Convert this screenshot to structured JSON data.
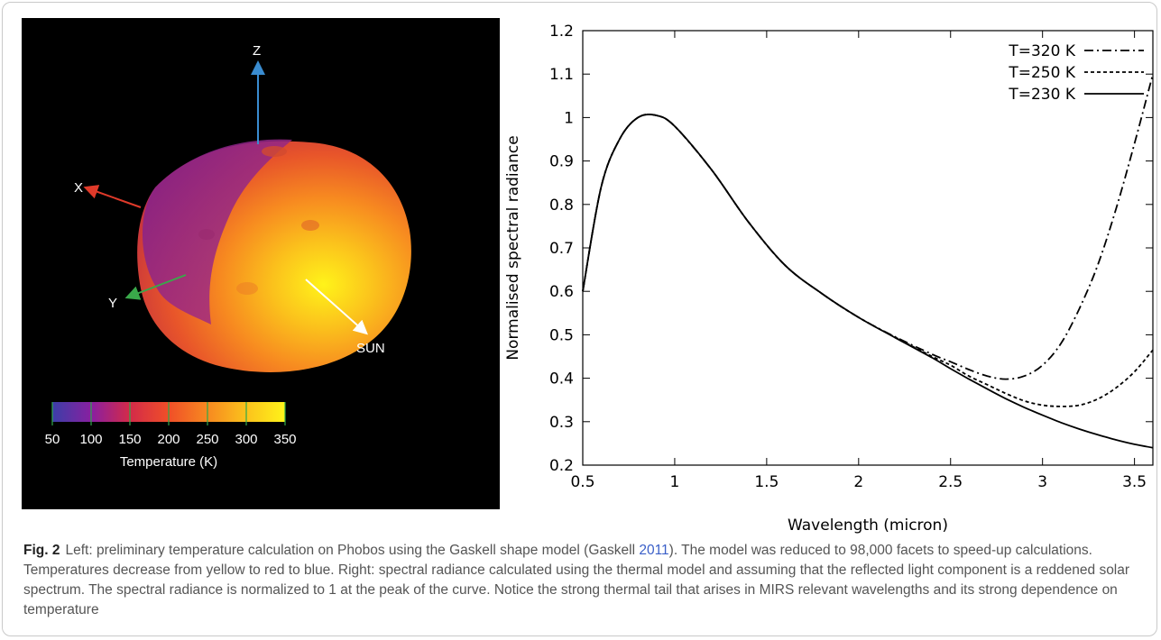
{
  "left_panel": {
    "axes": {
      "z": "Z",
      "x": "X",
      "y": "Y",
      "sun": "SUN"
    },
    "colorbar": {
      "ticks": [
        "50",
        "100",
        "150",
        "200",
        "250",
        "300",
        "350"
      ],
      "label": "Temperature (K)",
      "colors": [
        "#3b3fa8",
        "#8a1fa0",
        "#d22a4a",
        "#f04f28",
        "#f78a20",
        "#fbc11c",
        "#fff31a"
      ]
    }
  },
  "chart_data": {
    "type": "line",
    "xlabel": "Wavelength (micron)",
    "ylabel": "Normalised spectral radiance",
    "xlim": [
      0.5,
      3.6
    ],
    "ylim": [
      0.2,
      1.2
    ],
    "xticks": [
      "0.5",
      "1",
      "1.5",
      "2",
      "2.5",
      "3",
      "3.5"
    ],
    "yticks": [
      "0.2",
      "0.3",
      "0.4",
      "0.5",
      "0.6",
      "0.7",
      "0.8",
      "0.9",
      "1",
      "1.1",
      "1.2"
    ],
    "grid": false,
    "legend_position": "top-right",
    "x": [
      0.5,
      0.6,
      0.7,
      0.8,
      0.9,
      1.0,
      1.2,
      1.4,
      1.6,
      1.8,
      2.0,
      2.2,
      2.4,
      2.5,
      2.6,
      2.7,
      2.8,
      2.9,
      3.0,
      3.1,
      3.2,
      3.3,
      3.4,
      3.5,
      3.6
    ],
    "series": [
      {
        "name": "T=320 K",
        "style": "dash-dot",
        "values": [
          0.6,
          0.84,
          0.95,
          1.0,
          1.005,
          0.98,
          0.88,
          0.76,
          0.66,
          0.595,
          0.54,
          0.495,
          0.455,
          0.438,
          0.42,
          0.405,
          0.398,
          0.405,
          0.43,
          0.48,
          0.56,
          0.66,
          0.79,
          0.94,
          1.1
        ]
      },
      {
        "name": "T=250 K",
        "style": "dotted",
        "values": [
          0.6,
          0.84,
          0.95,
          1.0,
          1.005,
          0.98,
          0.88,
          0.76,
          0.66,
          0.595,
          0.54,
          0.494,
          0.45,
          0.43,
          0.405,
          0.385,
          0.365,
          0.348,
          0.338,
          0.335,
          0.338,
          0.352,
          0.378,
          0.415,
          0.465
        ]
      },
      {
        "name": "T=230 K",
        "style": "solid",
        "values": [
          0.6,
          0.84,
          0.95,
          1.0,
          1.005,
          0.98,
          0.88,
          0.76,
          0.66,
          0.595,
          0.54,
          0.493,
          0.447,
          0.422,
          0.398,
          0.375,
          0.353,
          0.333,
          0.315,
          0.298,
          0.283,
          0.27,
          0.258,
          0.248,
          0.24
        ]
      }
    ]
  },
  "caption": {
    "fig_label": "Fig. 2",
    "text_before_ref": "Left: preliminary temperature calculation on Phobos using the Gaskell shape model (Gaskell ",
    "ref": "2011",
    "text_after_ref": "). The model was reduced to 98,000 facets to speed-up calculations. Temperatures decrease from yellow to red to blue. Right: spectral radiance calculated using the thermal model and assuming that the reflected light component is a reddened solar spectrum. The spectral radiance is normalized to 1 at the peak of the curve. Notice the strong thermal tail that arises in MIRS relevant wavelengths and its strong dependence on temperature"
  }
}
